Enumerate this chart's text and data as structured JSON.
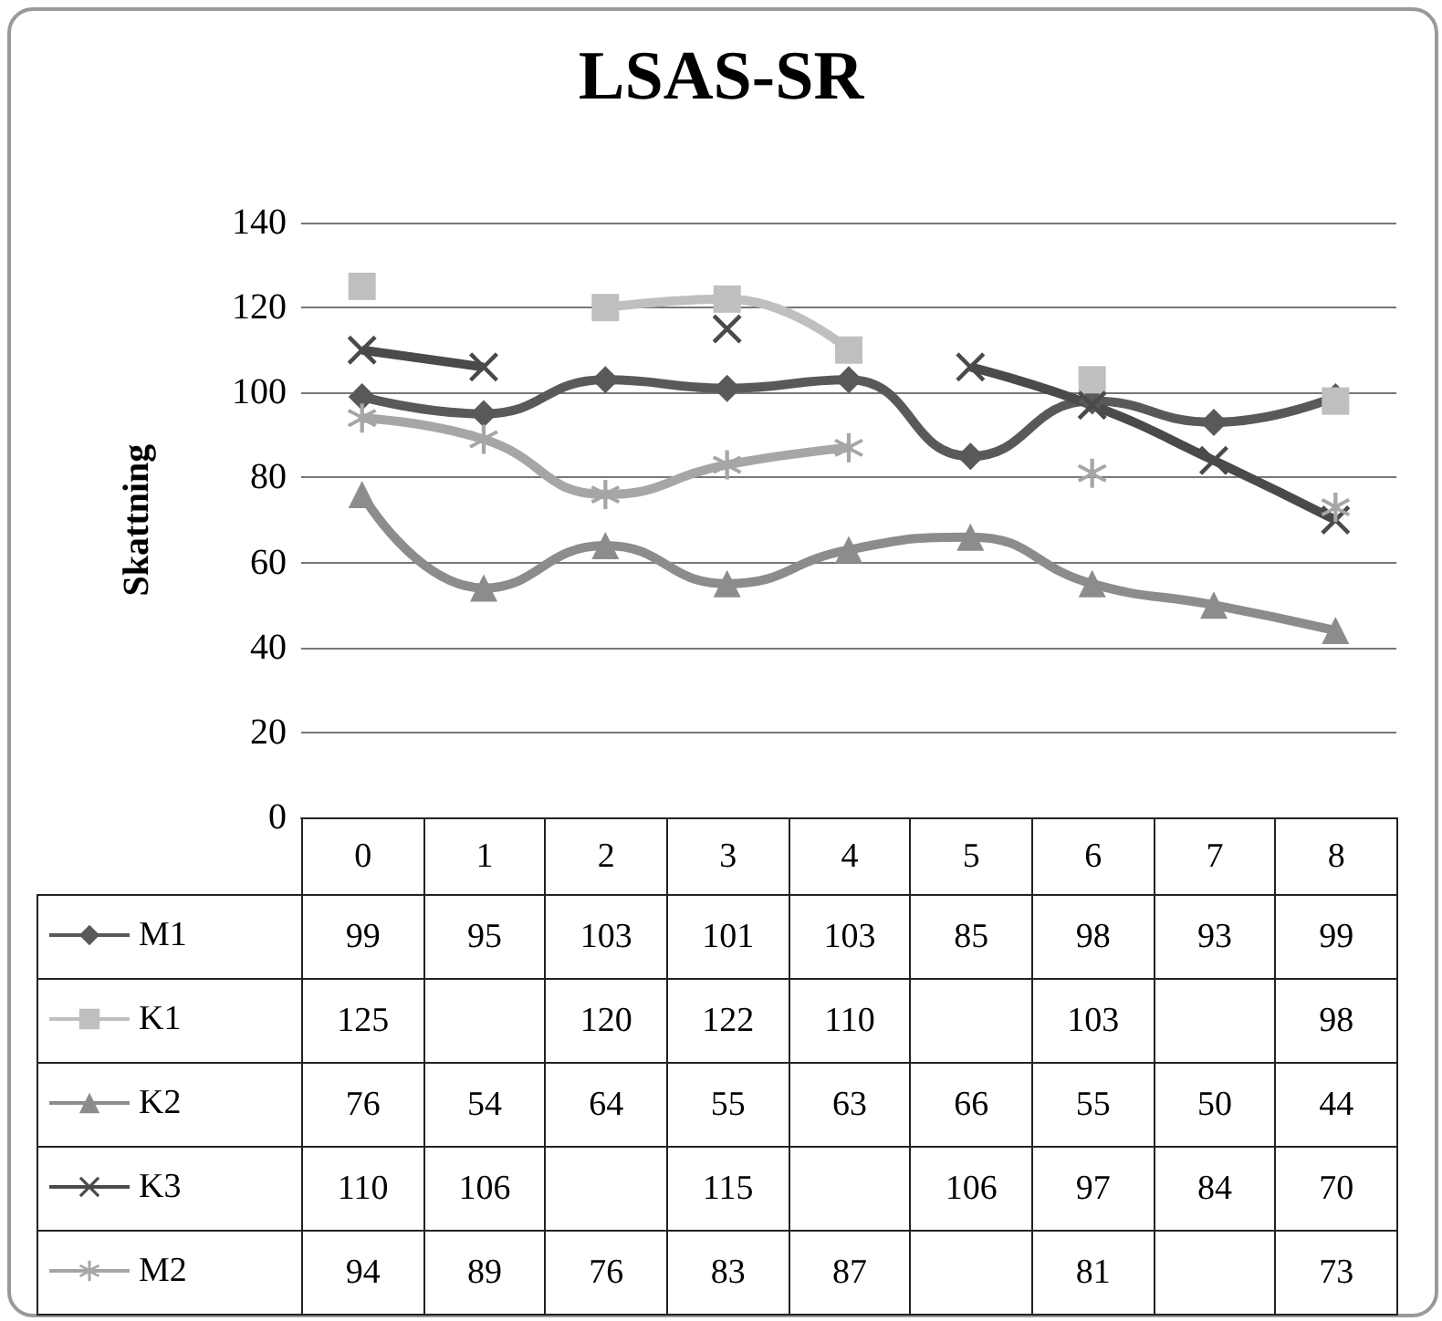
{
  "chart_data": {
    "type": "line",
    "title": "LSAS-SR",
    "ylabel": "Skattning",
    "categories": [
      "0",
      "1",
      "2",
      "3",
      "4",
      "5",
      "6",
      "7",
      "8"
    ],
    "series": [
      {
        "name": "M1",
        "color": "#595959",
        "marker": "diamond",
        "values": [
          99,
          95,
          103,
          101,
          103,
          85,
          98,
          93,
          99
        ]
      },
      {
        "name": "K1",
        "color": "#bfbfbf",
        "marker": "square",
        "values": [
          125,
          null,
          120,
          122,
          110,
          null,
          103,
          null,
          98
        ]
      },
      {
        "name": "K2",
        "color": "#8c8c8c",
        "marker": "triangle",
        "values": [
          76,
          54,
          64,
          55,
          63,
          66,
          55,
          50,
          44
        ]
      },
      {
        "name": "K3",
        "color": "#4a4a4a",
        "marker": "cross",
        "values": [
          110,
          106,
          null,
          115,
          null,
          106,
          97,
          84,
          70
        ]
      },
      {
        "name": "M2",
        "color": "#a6a6a6",
        "marker": "star",
        "values": [
          94,
          89,
          76,
          83,
          87,
          null,
          81,
          null,
          73
        ]
      }
    ],
    "ylim": [
      0,
      140
    ],
    "yticks": [
      0,
      20,
      40,
      60,
      80,
      100,
      120,
      140
    ],
    "grid": "y",
    "legend": "bottom",
    "data_labels": true
  }
}
